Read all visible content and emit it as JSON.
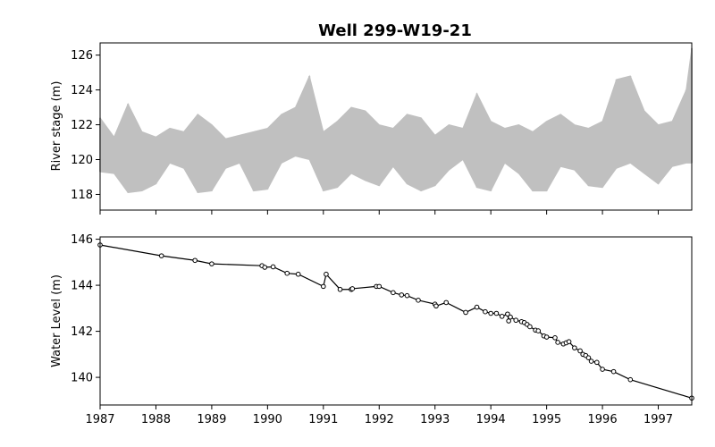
{
  "chart_data": [
    {
      "type": "area",
      "title": "Well 299-W19-21",
      "xlabel": "",
      "ylabel": "River stage (m)",
      "xlim": [
        1987.0,
        1997.6
      ],
      "ylim": [
        117.1,
        126.7
      ],
      "yticks": [
        118,
        120,
        122,
        124,
        126
      ],
      "xticks": [
        1987,
        1988,
        1989,
        1990,
        1991,
        1992,
        1993,
        1994,
        1995,
        1996,
        1997
      ],
      "fill_color": "#c0c0c0",
      "series": [
        {
          "name": "River stage range",
          "x": [
            1987.0,
            1987.25,
            1987.5,
            1987.75,
            1988.0,
            1988.25,
            1988.5,
            1988.75,
            1989.0,
            1989.25,
            1989.5,
            1989.75,
            1990.0,
            1990.25,
            1990.5,
            1990.75,
            1991.0,
            1991.25,
            1991.5,
            1991.75,
            1992.0,
            1992.25,
            1992.5,
            1992.75,
            1993.0,
            1993.25,
            1993.5,
            1993.75,
            1994.0,
            1994.25,
            1994.5,
            1994.75,
            1995.0,
            1995.25,
            1995.5,
            1995.75,
            1996.0,
            1996.25,
            1996.5,
            1996.75,
            1997.0,
            1997.25,
            1997.5,
            1997.6
          ],
          "low": [
            119.3,
            119.2,
            118.1,
            118.2,
            118.6,
            119.8,
            119.5,
            118.1,
            118.2,
            119.5,
            119.8,
            118.2,
            118.3,
            119.8,
            120.2,
            120.0,
            118.2,
            118.4,
            119.2,
            118.8,
            118.5,
            119.6,
            118.6,
            118.2,
            118.5,
            119.4,
            120.0,
            118.4,
            118.2,
            119.8,
            119.2,
            118.2,
            118.2,
            119.6,
            119.4,
            118.5,
            118.4,
            119.5,
            119.8,
            119.2,
            118.6,
            119.6,
            119.8,
            119.8
          ],
          "high": [
            122.4,
            121.3,
            123.2,
            121.6,
            121.3,
            121.8,
            121.6,
            122.6,
            122.0,
            121.2,
            121.4,
            121.6,
            121.8,
            122.6,
            123.0,
            124.8,
            121.6,
            122.2,
            123.0,
            122.8,
            122.0,
            121.8,
            122.6,
            122.4,
            121.4,
            122.0,
            121.8,
            123.8,
            122.2,
            121.8,
            122.0,
            121.6,
            122.2,
            122.6,
            122.0,
            121.8,
            122.2,
            124.6,
            124.8,
            122.8,
            122.0,
            122.2,
            124.0,
            126.4
          ]
        }
      ]
    },
    {
      "type": "line",
      "title": "",
      "xlabel": "",
      "ylabel": "Water Level (m)",
      "xlim": [
        1987.0,
        1997.6
      ],
      "ylim": [
        138.8,
        146.1
      ],
      "yticks": [
        140,
        142,
        144,
        146
      ],
      "xticks": [
        1987,
        1988,
        1989,
        1990,
        1991,
        1992,
        1993,
        1994,
        1995,
        1996,
        1997
      ],
      "line_color": "#000000",
      "series": [
        {
          "name": "Water Level",
          "marker": "circle-open",
          "x": [
            1987.0,
            1988.1,
            1988.7,
            1989.0,
            1989.9,
            1989.95,
            1990.1,
            1990.35,
            1990.55,
            1991.0,
            1991.05,
            1991.3,
            1991.5,
            1991.52,
            1991.95,
            1992.0,
            1992.25,
            1992.4,
            1992.5,
            1992.7,
            1993.0,
            1993.02,
            1993.2,
            1993.55,
            1993.75,
            1993.9,
            1994.0,
            1994.1,
            1994.2,
            1994.3,
            1994.32,
            1994.35,
            1994.45,
            1994.55,
            1994.6,
            1994.65,
            1994.7,
            1994.8,
            1994.85,
            1994.95,
            1995.0,
            1995.15,
            1995.2,
            1995.3,
            1995.35,
            1995.4,
            1995.5,
            1995.6,
            1995.65,
            1995.7,
            1995.75,
            1995.8,
            1995.9,
            1996.0,
            1996.2,
            1996.5,
            1997.6
          ],
          "y": [
            145.75,
            145.28,
            145.08,
            144.93,
            144.85,
            144.78,
            144.8,
            144.52,
            144.48,
            143.95,
            144.48,
            143.82,
            143.82,
            143.85,
            143.95,
            143.95,
            143.68,
            143.58,
            143.55,
            143.35,
            143.18,
            143.1,
            143.25,
            142.82,
            143.05,
            142.85,
            142.78,
            142.78,
            142.65,
            142.75,
            142.45,
            142.62,
            142.48,
            142.42,
            142.38,
            142.3,
            142.2,
            142.05,
            142.02,
            141.8,
            141.75,
            141.72,
            141.52,
            141.45,
            141.5,
            141.55,
            141.28,
            141.15,
            141.0,
            140.95,
            140.85,
            140.7,
            140.65,
            140.35,
            140.25,
            139.9,
            139.1
          ]
        }
      ]
    }
  ]
}
